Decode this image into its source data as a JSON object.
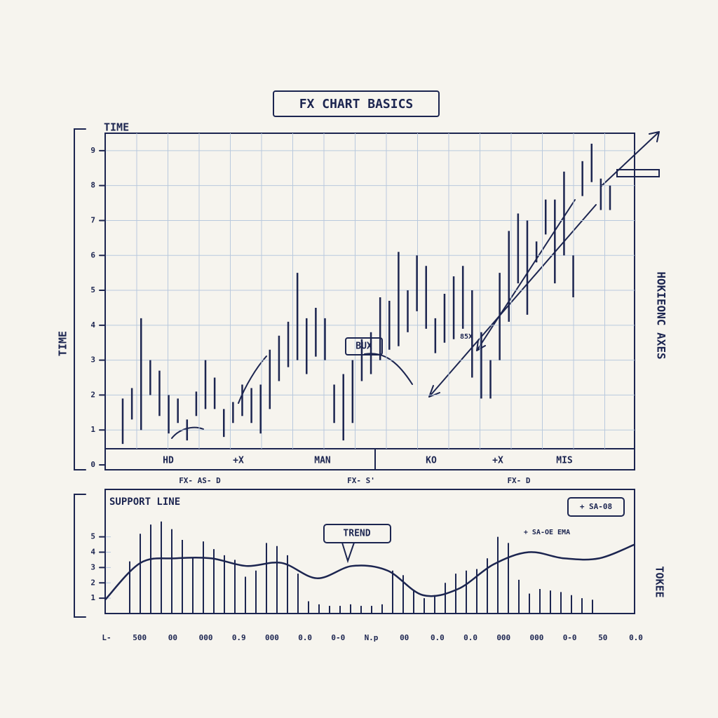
{
  "title": "FX CHART BASICS",
  "chart_data": [
    {
      "type": "range",
      "axis_label_top": "TIME",
      "y_label": "TIME",
      "right_label": "HOKIEONC AXES",
      "annotations": [
        "BUX",
        "85X"
      ],
      "bands": [
        "HD",
        "+X",
        "MAN",
        "KO",
        "+X",
        "MIS"
      ],
      "footer_labels": [
        "FX- AS- D",
        "FX- S'",
        "FX- D"
      ],
      "ylim": [
        0,
        9.5
      ],
      "yticks": [
        0,
        1,
        2,
        3,
        4,
        5,
        6,
        7,
        8,
        9
      ],
      "grid": true,
      "color": "#1c2550",
      "low": [
        0.6,
        1.3,
        1.0,
        2.0,
        1.4,
        0.9,
        1.2,
        0.7,
        1.4,
        1.6,
        1.6,
        0.8,
        1.2,
        1.4,
        1.2,
        0.9,
        1.6,
        2.4,
        2.8,
        3.0,
        2.6,
        3.1,
        3.0,
        1.2,
        0.7,
        1.2,
        2.4,
        2.6,
        3.0,
        3.3,
        3.4,
        3.8,
        4.4,
        3.9,
        3.2,
        3.5,
        3.6,
        3.9,
        2.5,
        1.9,
        1.9,
        3.0,
        4.1,
        5.2,
        4.3,
        5.8,
        6.6,
        5.2,
        6.0,
        4.8,
        7.7,
        8.1,
        7.3,
        7.3
      ],
      "high": [
        1.9,
        2.2,
        4.2,
        3.0,
        2.7,
        2.0,
        1.9,
        1.3,
        2.1,
        3.0,
        2.5,
        1.6,
        1.8,
        2.3,
        2.2,
        2.3,
        3.3,
        3.7,
        4.1,
        5.5,
        4.2,
        4.5,
        4.2,
        2.3,
        2.6,
        3.0,
        3.6,
        3.8,
        4.8,
        4.7,
        6.1,
        5.0,
        6.0,
        5.7,
        4.2,
        4.9,
        5.4,
        5.7,
        5.0,
        3.8,
        3.0,
        5.5,
        6.7,
        7.2,
        7.0,
        6.4,
        7.6,
        7.6,
        8.4,
        6.0,
        8.7,
        9.2,
        8.2,
        8.0
      ]
    },
    {
      "type": "volume_line",
      "title": "SUPPORT LINE",
      "right_label": "TOKEE",
      "annotations": [
        "TREND",
        "+ SA-08",
        "+ SA-OE EMA"
      ],
      "xtick_labels": [
        "L-",
        "500",
        "00",
        "000",
        "0.9",
        "000",
        "0.0",
        "0-0",
        "N.p",
        "00",
        "0.0",
        "0.0",
        "000",
        "000",
        "0-0",
        "50",
        "0.0"
      ],
      "ylim": [
        0,
        8
      ],
      "yticks": [
        1,
        2,
        3,
        4,
        5
      ],
      "grid": true,
      "color": "#1c2550",
      "volume": [
        3.4,
        5.2,
        5.8,
        6.0,
        5.5,
        4.8,
        3.6,
        4.7,
        4.2,
        3.8,
        3.5,
        2.4,
        2.8,
        4.6,
        4.4,
        3.8,
        2.6,
        0.8,
        0.6,
        0.5,
        0.5,
        0.6,
        0.5,
        0.5,
        0.6,
        2.8,
        2.5,
        1.5,
        1.0,
        1.2,
        2.0,
        2.6,
        2.8,
        2.9,
        3.6,
        5.0,
        4.6,
        2.2,
        1.3,
        1.6,
        1.5,
        1.4,
        1.2,
        1.0,
        0.9
      ],
      "line": [
        0.9,
        3.3,
        3.6,
        3.6,
        3.1,
        3.3,
        2.3,
        3.1,
        2.8,
        1.2,
        1.6,
        3.2,
        4.0,
        3.6,
        3.6,
        4.5
      ]
    }
  ]
}
